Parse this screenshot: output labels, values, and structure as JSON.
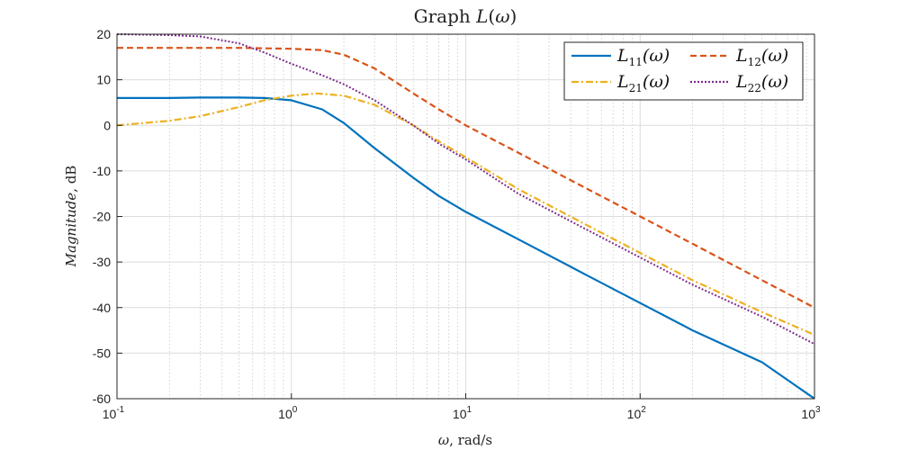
{
  "chart_data": {
    "type": "line",
    "title": "Graph L(ω)",
    "xlabel": "ω, rad/s",
    "ylabel": "Magnitude, dB",
    "xscale": "log",
    "xlim": [
      0.1,
      1000
    ],
    "ylim": [
      -60,
      20
    ],
    "x_ticks": [
      {
        "value": 0.1,
        "base": "10",
        "exp": "-1"
      },
      {
        "value": 1,
        "base": "10",
        "exp": "0"
      },
      {
        "value": 10,
        "base": "10",
        "exp": "1"
      },
      {
        "value": 100,
        "base": "10",
        "exp": "2"
      },
      {
        "value": 1000,
        "base": "10",
        "exp": "3"
      }
    ],
    "y_ticks": [
      20,
      10,
      0,
      -10,
      -20,
      -30,
      -40,
      -50,
      -60
    ],
    "grid": true,
    "minor_grid": true,
    "legend_position": "top-right",
    "legend_columns": 2,
    "series": [
      {
        "name": "L11(ω)",
        "color": "#0072BD",
        "style": "solid",
        "x": [
          0.1,
          0.2,
          0.3,
          0.5,
          0.7,
          1,
          1.5,
          2,
          3,
          5,
          7,
          10,
          20,
          50,
          100,
          200,
          500,
          1000
        ],
        "y": [
          6,
          6,
          6.1,
          6.1,
          6.0,
          5.5,
          3.5,
          0.5,
          -5,
          -11.5,
          -15.5,
          -19,
          -25,
          -33,
          -39,
          -45,
          -52,
          -60
        ]
      },
      {
        "name": "L12(ω)",
        "color": "#D95319",
        "style": "dashed",
        "x": [
          0.1,
          0.3,
          0.5,
          1,
          1.5,
          2,
          3,
          5,
          7,
          10,
          20,
          50,
          100,
          200,
          500,
          1000
        ],
        "y": [
          17,
          17,
          17,
          16.8,
          16.5,
          15.5,
          12.5,
          7,
          3.5,
          0,
          -6,
          -14,
          -20,
          -26,
          -34,
          -40
        ]
      },
      {
        "name": "L21(ω)",
        "color": "#EDB120",
        "style": "dashdot",
        "x": [
          0.1,
          0.2,
          0.3,
          0.5,
          0.7,
          1,
          1.4,
          2,
          3,
          5,
          7,
          10,
          20,
          50,
          100,
          200,
          500,
          1000
        ],
        "y": [
          0,
          1,
          2,
          4,
          5.5,
          6.5,
          7,
          6.5,
          4.5,
          0,
          -3.5,
          -7,
          -14,
          -22,
          -28,
          -34,
          -41,
          -46
        ]
      },
      {
        "name": "L22(ω)",
        "color": "#7E2F8E",
        "style": "dotted",
        "x": [
          0.1,
          0.2,
          0.3,
          0.5,
          0.7,
          1,
          1.5,
          2,
          3,
          5,
          7,
          10,
          20,
          50,
          100,
          200,
          500,
          1000
        ],
        "y": [
          20,
          19.8,
          19.5,
          18,
          16,
          13.5,
          11,
          9,
          5.5,
          0,
          -4,
          -7.5,
          -15,
          -23,
          -29,
          -35,
          -42,
          -48
        ]
      }
    ]
  }
}
